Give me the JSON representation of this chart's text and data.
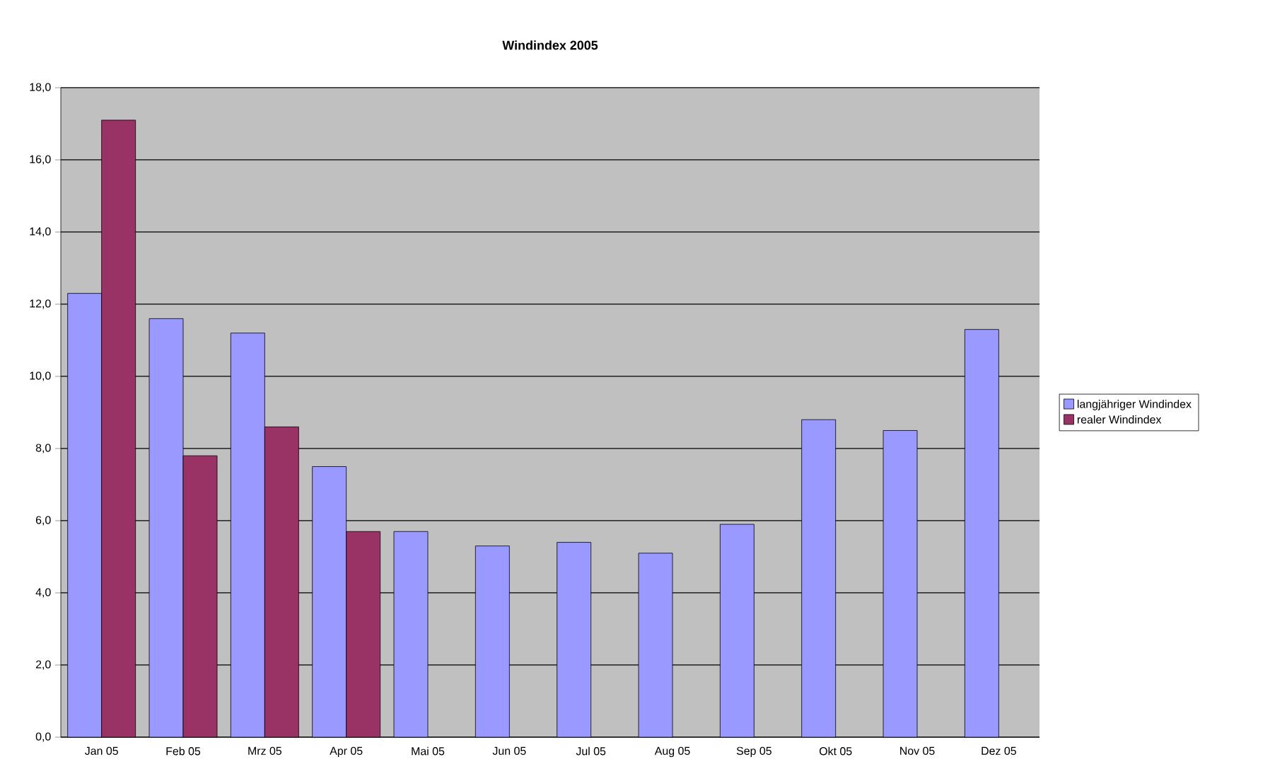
{
  "chart_data": {
    "type": "bar",
    "title": "Windindex 2005",
    "categories": [
      "Jan 05",
      "Feb 05",
      "Mrz 05",
      "Apr 05",
      "Mai 05",
      "Jun 05",
      "Jul 05",
      "Aug 05",
      "Sep 05",
      "Okt 05",
      "Nov 05",
      "Dez 05"
    ],
    "series": [
      {
        "name": "langjähriger Windindex",
        "color": "#9999ff",
        "values": [
          12.3,
          11.6,
          11.2,
          7.5,
          5.7,
          5.3,
          5.4,
          5.1,
          5.9,
          8.8,
          8.5,
          11.3
        ]
      },
      {
        "name": "realer Windindex",
        "color": "#993366",
        "values": [
          17.1,
          7.8,
          8.6,
          5.7,
          null,
          null,
          null,
          null,
          null,
          null,
          null,
          null
        ]
      }
    ],
    "ylim": [
      0,
      18
    ],
    "yticks": [
      {
        "value": 0,
        "label": "0,0"
      },
      {
        "value": 2,
        "label": "2,0"
      },
      {
        "value": 4,
        "label": "4,0"
      },
      {
        "value": 6,
        "label": "6,0"
      },
      {
        "value": 8,
        "label": "8,0"
      },
      {
        "value": 10,
        "label": "10,0"
      },
      {
        "value": 12,
        "label": "12,0"
      },
      {
        "value": 14,
        "label": "14,0"
      },
      {
        "value": 16,
        "label": "16,0"
      },
      {
        "value": 18,
        "label": "18,0"
      }
    ],
    "grid": "y",
    "legend": "right"
  }
}
